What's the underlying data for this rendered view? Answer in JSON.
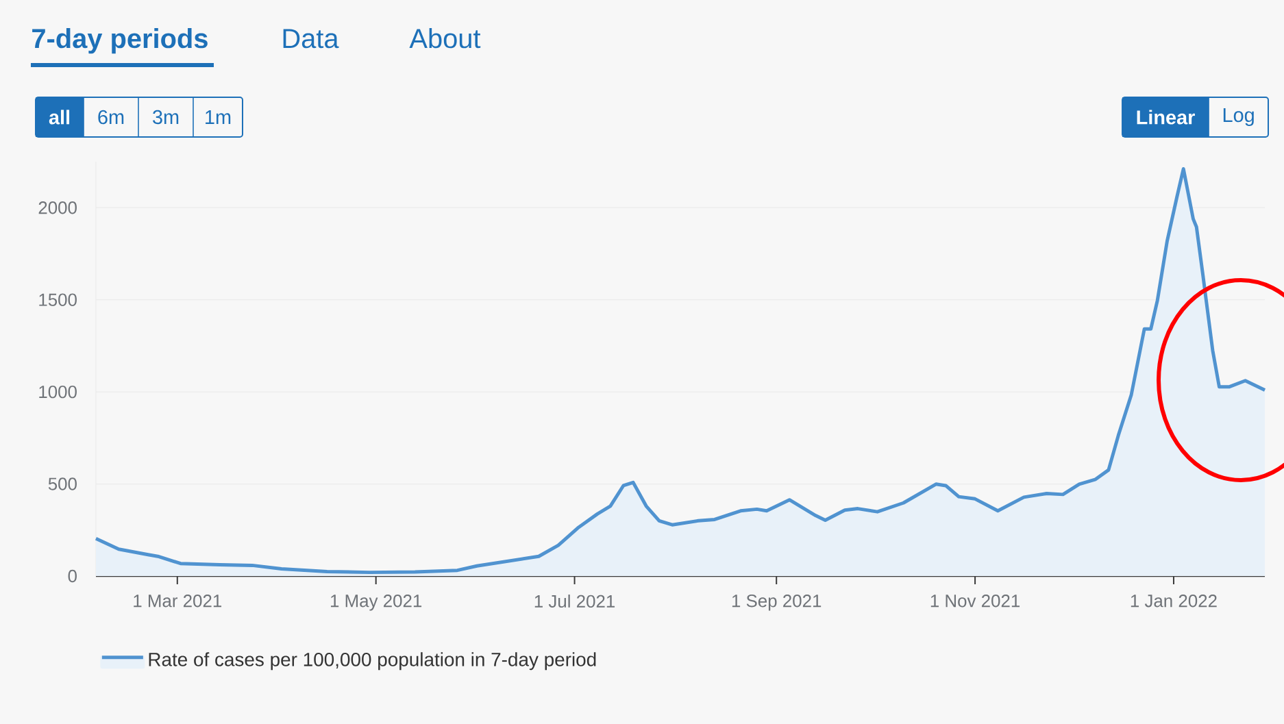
{
  "chart_data": {
    "type": "area",
    "x": [
      "2021-02-04",
      "2021-02-11",
      "2021-02-20",
      "2021-02-23",
      "2021-03-02",
      "2021-03-14",
      "2021-03-24",
      "2021-04-02",
      "2021-04-16",
      "2021-04-29",
      "2021-05-13",
      "2021-05-26",
      "2021-06-01",
      "2021-06-20",
      "2021-06-26",
      "2021-07-02",
      "2021-07-08",
      "2021-07-12",
      "2021-07-16",
      "2021-07-19",
      "2021-07-23",
      "2021-07-27",
      "2021-07-31",
      "2021-08-08",
      "2021-08-13",
      "2021-08-21",
      "2021-08-26",
      "2021-08-29",
      "2021-09-05",
      "2021-09-13",
      "2021-09-16",
      "2021-09-22",
      "2021-09-26",
      "2021-10-02",
      "2021-10-10",
      "2021-10-20",
      "2021-10-23",
      "2021-10-27",
      "2021-11-01",
      "2021-11-08",
      "2021-11-16",
      "2021-11-23",
      "2021-11-28",
      "2021-12-03",
      "2021-12-08",
      "2021-12-12",
      "2021-12-15",
      "2021-12-19",
      "2021-12-23",
      "2021-12-25",
      "2021-12-27",
      "2021-12-30",
      "2022-01-02",
      "2022-01-04",
      "2022-01-07",
      "2022-01-08",
      "2022-01-10",
      "2022-01-13",
      "2022-01-15",
      "2022-01-18",
      "2022-01-23",
      "2022-01-29"
    ],
    "series": [
      {
        "name": "Rate of cases per 100,000 population in 7-day period",
        "color": "#5093d0",
        "values": [
          204,
          146,
          116,
          107,
          68,
          61,
          58,
          39,
          24,
          20,
          22,
          31,
          55,
          107,
          167,
          261,
          337,
          380,
          491,
          508,
          380,
          300,
          278,
          300,
          307,
          354,
          363,
          354,
          414,
          329,
          303,
          358,
          366,
          349,
          397,
          499,
          491,
          431,
          419,
          354,
          428,
          448,
          443,
          499,
          525,
          576,
          763,
          985,
          1342,
          1342,
          1496,
          1819,
          2058,
          2211,
          1939,
          1896,
          1632,
          1223,
          1027,
          1027,
          1061,
          1010
        ]
      }
    ],
    "xlim": [
      "2021-02-04",
      "2022-01-29"
    ],
    "xticks": [
      {
        "value": "2021-03-01",
        "label": "1 Mar 2021"
      },
      {
        "value": "2021-05-01",
        "label": "1 May 2021"
      },
      {
        "value": "2021-07-01",
        "label": "1 Jul 2021"
      },
      {
        "value": "2021-09-01",
        "label": "1 Sep 2021"
      },
      {
        "value": "2021-11-01",
        "label": "1 Nov 2021"
      },
      {
        "value": "2022-01-01",
        "label": "1 Jan 2022"
      }
    ],
    "ylim": [
      0,
      2250
    ],
    "yticks": [
      0,
      500,
      1000,
      1500,
      2000
    ],
    "grid": "y",
    "legend": "bottom left",
    "annotations": [
      "7-day periods",
      "Data",
      "About",
      "all",
      "6m",
      "3m",
      "1m",
      "Linear",
      "Log"
    ]
  }
}
